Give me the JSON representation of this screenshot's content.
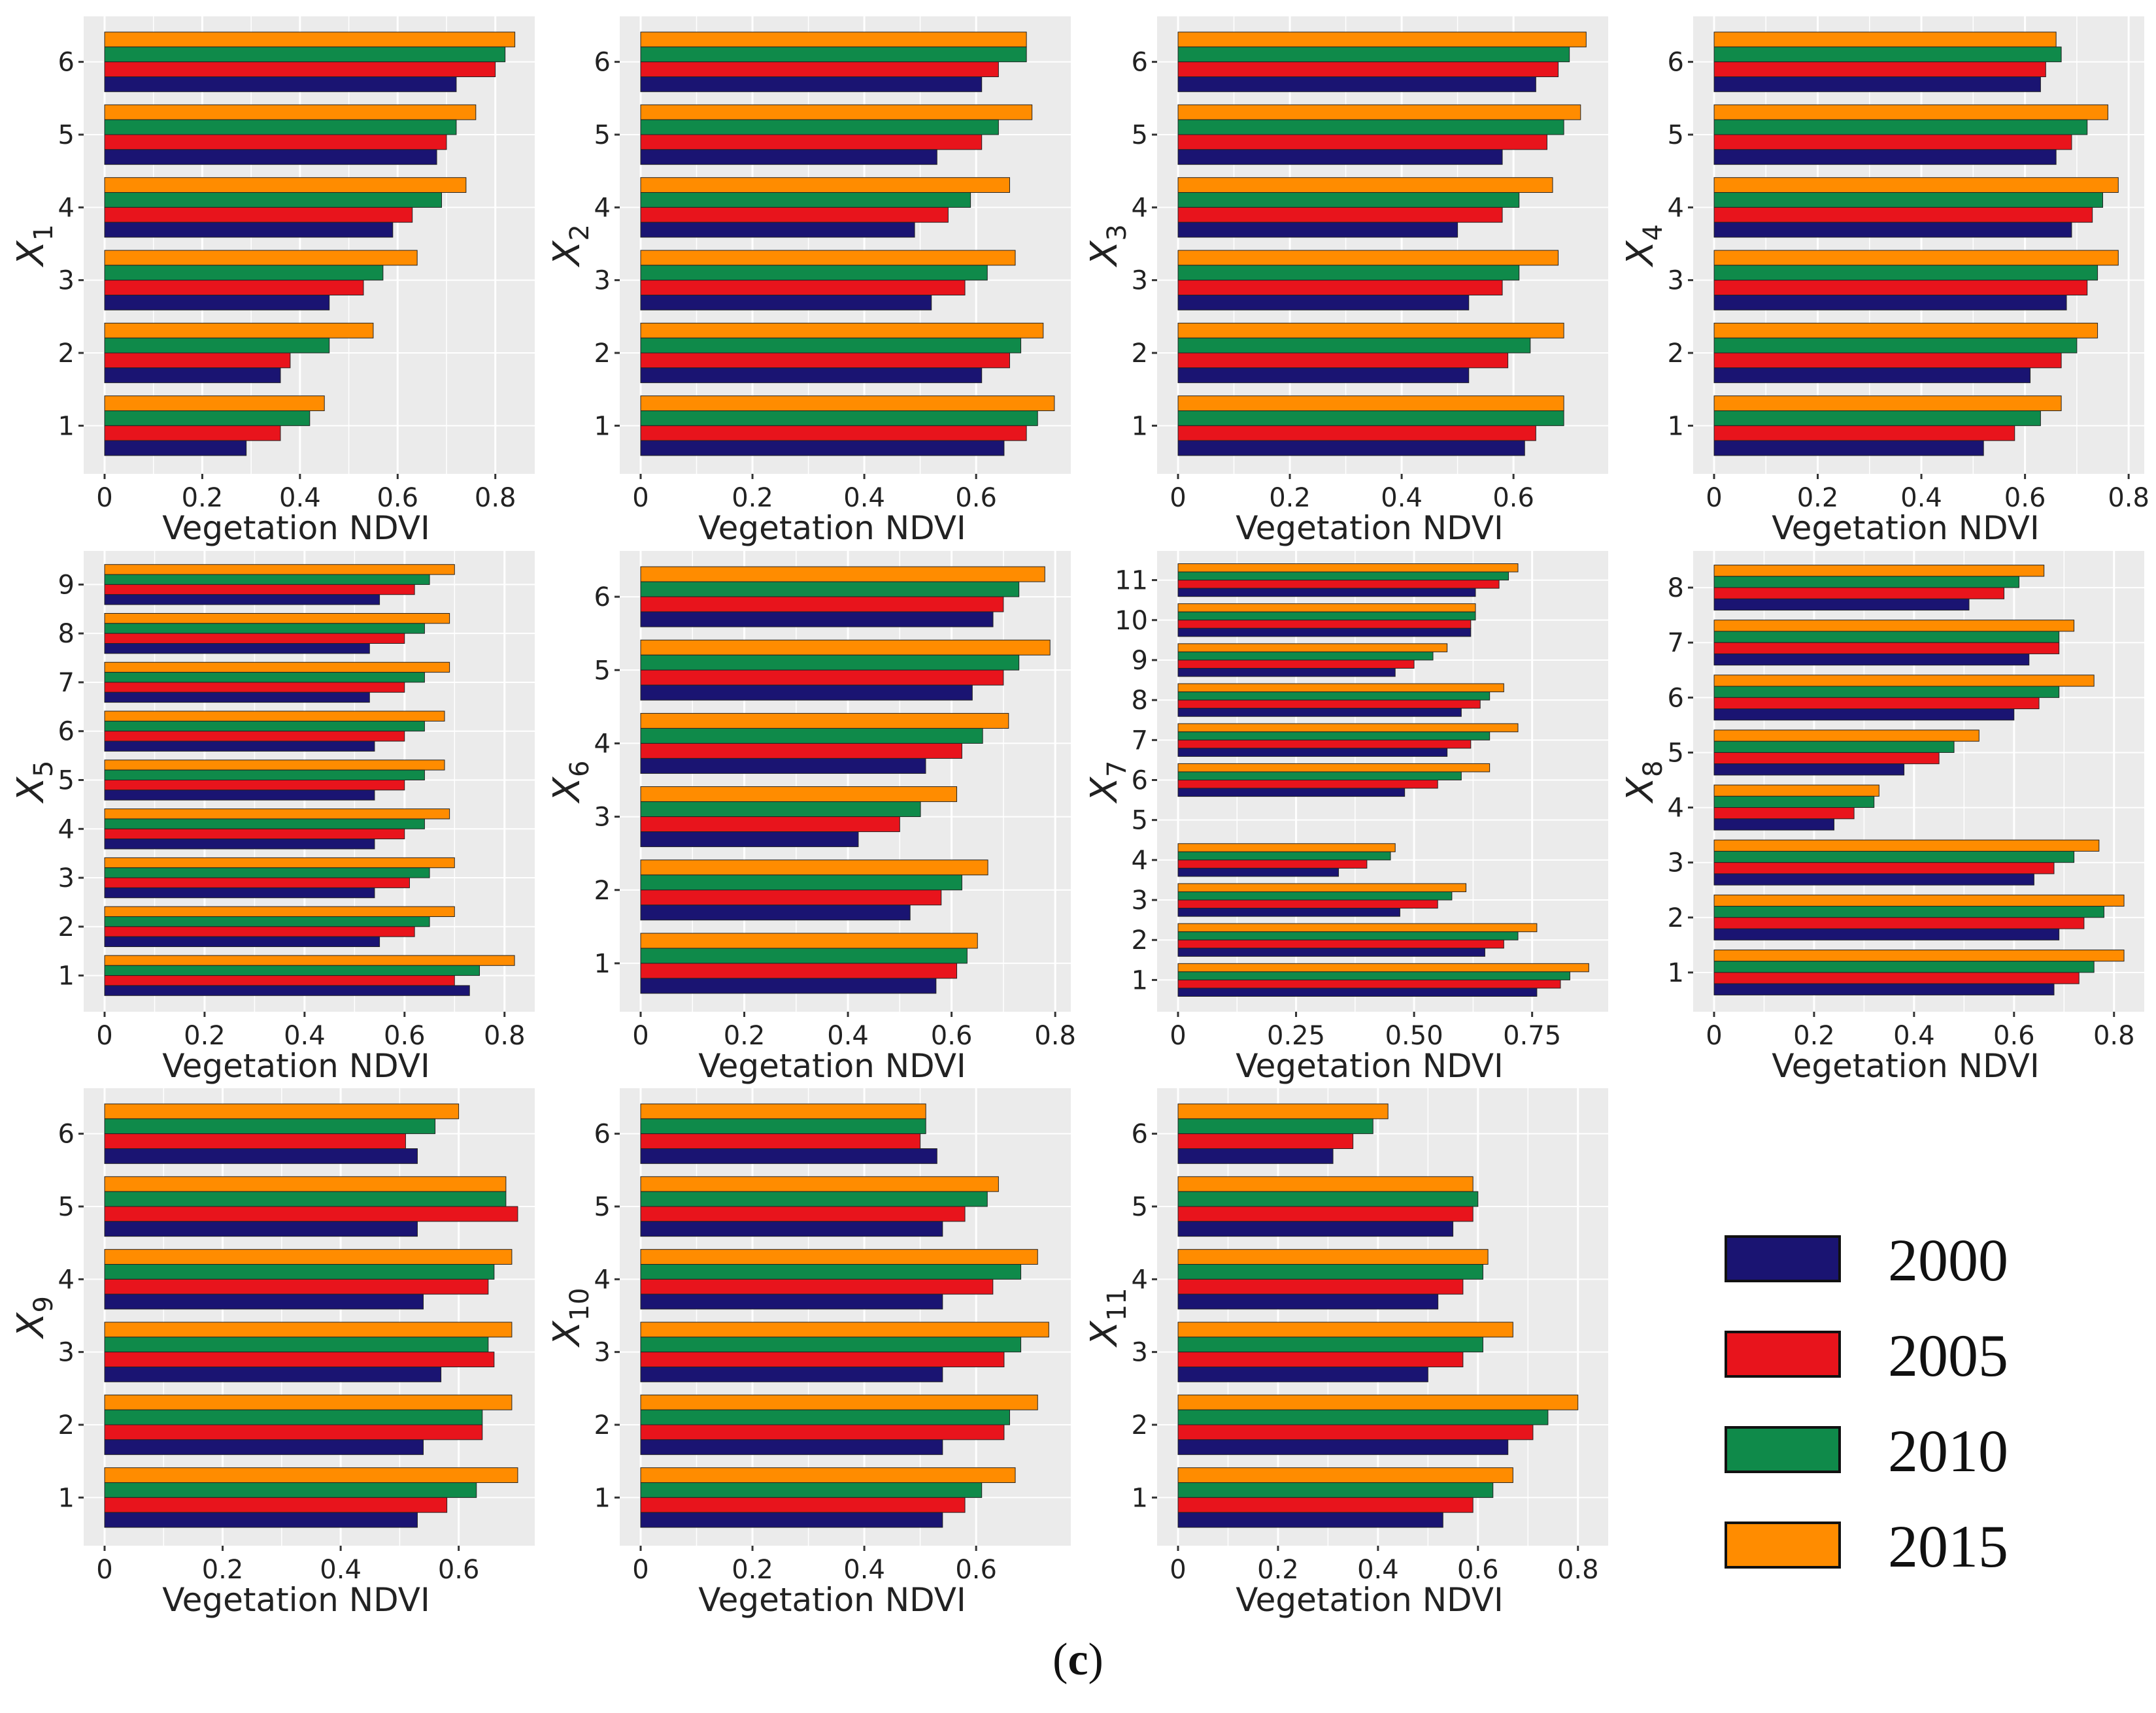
{
  "colors": {
    "2000": "#1a1472",
    "2005": "#e8141c",
    "2010": "#0f8a4a",
    "2015": "#ff8c00",
    "panel_bg": "#ebebeb",
    "grid": "#ffffff"
  },
  "legend": {
    "items": [
      {
        "label": "2000",
        "color": "#1a1472"
      },
      {
        "label": "2005",
        "color": "#e8141c"
      },
      {
        "label": "2010",
        "color": "#0f8a4a"
      },
      {
        "label": "2015",
        "color": "#ff8c00"
      }
    ]
  },
  "figure_label": {
    "open": "(",
    "letter": "c",
    "close": ")"
  },
  "chart_data": [
    {
      "type": "bar",
      "orientation": "horizontal",
      "ylabel_base": "X",
      "ylabel_sub": "1",
      "xlabel": "Vegetation NDVI",
      "xlim": [
        0,
        0.87
      ],
      "xticks": [
        0,
        0.2,
        0.4,
        0.6,
        0.8
      ],
      "xtick_labels": [
        "0",
        "0.2",
        "0.4",
        "0.6",
        "0.8"
      ],
      "categories": [
        "1",
        "2",
        "3",
        "4",
        "5",
        "6"
      ],
      "series": [
        {
          "name": "2000",
          "values": [
            0.29,
            0.36,
            0.46,
            0.59,
            0.68,
            0.72
          ]
        },
        {
          "name": "2005",
          "values": [
            0.36,
            0.38,
            0.53,
            0.63,
            0.7,
            0.8
          ]
        },
        {
          "name": "2010",
          "values": [
            0.42,
            0.46,
            0.57,
            0.69,
            0.72,
            0.82
          ]
        },
        {
          "name": "2015",
          "values": [
            0.45,
            0.55,
            0.64,
            0.74,
            0.76,
            0.84
          ]
        }
      ]
    },
    {
      "type": "bar",
      "orientation": "horizontal",
      "ylabel_base": "X",
      "ylabel_sub": "2",
      "xlabel": "Vegetation NDVI",
      "xlim": [
        0,
        0.76
      ],
      "xticks": [
        0,
        0.2,
        0.4,
        0.6
      ],
      "xtick_labels": [
        "0",
        "0.2",
        "0.4",
        "0.6"
      ],
      "categories": [
        "1",
        "2",
        "3",
        "4",
        "5",
        "6"
      ],
      "series": [
        {
          "name": "2000",
          "values": [
            0.65,
            0.61,
            0.52,
            0.49,
            0.53,
            0.61
          ]
        },
        {
          "name": "2005",
          "values": [
            0.69,
            0.66,
            0.58,
            0.55,
            0.61,
            0.64
          ]
        },
        {
          "name": "2010",
          "values": [
            0.71,
            0.68,
            0.62,
            0.59,
            0.64,
            0.69
          ]
        },
        {
          "name": "2015",
          "values": [
            0.74,
            0.72,
            0.67,
            0.66,
            0.7,
            0.69
          ]
        }
      ]
    },
    {
      "type": "bar",
      "orientation": "horizontal",
      "ylabel_base": "X",
      "ylabel_sub": "3",
      "xlabel": "Vegetation NDVI",
      "xlim": [
        0,
        0.76
      ],
      "xticks": [
        0,
        0.2,
        0.4,
        0.6
      ],
      "xtick_labels": [
        "0",
        "0.2",
        "0.4",
        "0.6"
      ],
      "categories": [
        "1",
        "2",
        "3",
        "4",
        "5",
        "6"
      ],
      "series": [
        {
          "name": "2000",
          "values": [
            0.62,
            0.52,
            0.52,
            0.5,
            0.58,
            0.64
          ]
        },
        {
          "name": "2005",
          "values": [
            0.64,
            0.59,
            0.58,
            0.58,
            0.66,
            0.68
          ]
        },
        {
          "name": "2010",
          "values": [
            0.69,
            0.63,
            0.61,
            0.61,
            0.69,
            0.7
          ]
        },
        {
          "name": "2015",
          "values": [
            0.69,
            0.69,
            0.68,
            0.67,
            0.72,
            0.73
          ]
        }
      ]
    },
    {
      "type": "bar",
      "orientation": "horizontal",
      "ylabel_base": "X",
      "ylabel_sub": "4",
      "xlabel": "Vegetation NDVI",
      "xlim": [
        0,
        0.82
      ],
      "xticks": [
        0,
        0.2,
        0.4,
        0.6,
        0.8
      ],
      "xtick_labels": [
        "0",
        "0.2",
        "0.4",
        "0.6",
        "0.8"
      ],
      "categories": [
        "1",
        "2",
        "3",
        "4",
        "5",
        "6"
      ],
      "series": [
        {
          "name": "2000",
          "values": [
            0.52,
            0.61,
            0.68,
            0.69,
            0.66,
            0.63
          ]
        },
        {
          "name": "2005",
          "values": [
            0.58,
            0.67,
            0.72,
            0.73,
            0.69,
            0.64
          ]
        },
        {
          "name": "2010",
          "values": [
            0.63,
            0.7,
            0.74,
            0.75,
            0.72,
            0.67
          ]
        },
        {
          "name": "2015",
          "values": [
            0.67,
            0.74,
            0.78,
            0.78,
            0.76,
            0.66
          ]
        }
      ]
    },
    {
      "type": "bar",
      "orientation": "horizontal",
      "ylabel_base": "X",
      "ylabel_sub": "5",
      "xlabel": "Vegetation NDVI",
      "xlim": [
        0,
        0.85
      ],
      "xticks": [
        0,
        0.2,
        0.4,
        0.6,
        0.8
      ],
      "xtick_labels": [
        "0",
        "0.2",
        "0.4",
        "0.6",
        "0.8"
      ],
      "categories": [
        "1",
        "2",
        "3",
        "4",
        "5",
        "6",
        "7",
        "8",
        "9"
      ],
      "series": [
        {
          "name": "2000",
          "values": [
            0.73,
            0.55,
            0.54,
            0.54,
            0.54,
            0.54,
            0.53,
            0.53,
            0.55
          ]
        },
        {
          "name": "2005",
          "values": [
            0.7,
            0.62,
            0.61,
            0.6,
            0.6,
            0.6,
            0.6,
            0.6,
            0.62
          ]
        },
        {
          "name": "2010",
          "values": [
            0.75,
            0.65,
            0.65,
            0.64,
            0.64,
            0.64,
            0.64,
            0.64,
            0.65
          ]
        },
        {
          "name": "2015",
          "values": [
            0.82,
            0.7,
            0.7,
            0.69,
            0.68,
            0.68,
            0.69,
            0.69,
            0.7
          ]
        }
      ]
    },
    {
      "type": "bar",
      "orientation": "horizontal",
      "ylabel_base": "X",
      "ylabel_sub": "6",
      "xlabel": "Vegetation NDVI",
      "xlim": [
        0,
        0.82
      ],
      "xticks": [
        0,
        0.2,
        0.4,
        0.6,
        0.8
      ],
      "xtick_labels": [
        "0",
        "0.2",
        "0.4",
        "0.6",
        "0.8"
      ],
      "categories": [
        "1",
        "2",
        "3",
        "4",
        "5",
        "6"
      ],
      "series": [
        {
          "name": "2000",
          "values": [
            0.57,
            0.52,
            0.42,
            0.55,
            0.64,
            0.68
          ]
        },
        {
          "name": "2005",
          "values": [
            0.61,
            0.58,
            0.5,
            0.62,
            0.7,
            0.7
          ]
        },
        {
          "name": "2010",
          "values": [
            0.63,
            0.62,
            0.54,
            0.66,
            0.73,
            0.73
          ]
        },
        {
          "name": "2015",
          "values": [
            0.65,
            0.67,
            0.61,
            0.71,
            0.79,
            0.78
          ]
        }
      ]
    },
    {
      "type": "bar",
      "orientation": "horizontal",
      "ylabel_base": "X",
      "ylabel_sub": "7",
      "xlabel": "Vegetation NDVI",
      "xlim": [
        0,
        0.9
      ],
      "xticks": [
        0,
        0.25,
        0.5,
        0.75
      ],
      "xtick_labels": [
        "0",
        "0.25",
        "0.50",
        "0.75"
      ],
      "categories": [
        "1",
        "2",
        "3",
        "4",
        "5",
        "6",
        "7",
        "8",
        "9",
        "10",
        "11"
      ],
      "series": [
        {
          "name": "2000",
          "values": [
            0.76,
            0.65,
            0.47,
            0.34,
            null,
            0.48,
            0.57,
            0.6,
            0.46,
            0.62,
            0.63
          ]
        },
        {
          "name": "2005",
          "values": [
            0.81,
            0.69,
            0.55,
            0.4,
            null,
            0.55,
            0.62,
            0.64,
            0.5,
            0.62,
            0.68
          ]
        },
        {
          "name": "2010",
          "values": [
            0.83,
            0.72,
            0.58,
            0.45,
            null,
            0.6,
            0.66,
            0.66,
            0.54,
            0.63,
            0.7
          ]
        },
        {
          "name": "2015",
          "values": [
            0.87,
            0.76,
            0.61,
            0.46,
            null,
            0.66,
            0.72,
            0.69,
            0.57,
            0.63,
            0.72
          ]
        }
      ]
    },
    {
      "type": "bar",
      "orientation": "horizontal",
      "ylabel_base": "X",
      "ylabel_sub": "8",
      "xlabel": "Vegetation NDVI",
      "xlim": [
        0,
        0.85
      ],
      "xticks": [
        0,
        0.2,
        0.4,
        0.6,
        0.8
      ],
      "xtick_labels": [
        "0",
        "0.2",
        "0.4",
        "0.6",
        "0.8"
      ],
      "categories": [
        "1",
        "2",
        "3",
        "4",
        "5",
        "6",
        "7",
        "8"
      ],
      "series": [
        {
          "name": "2000",
          "values": [
            0.68,
            0.69,
            0.64,
            0.24,
            0.38,
            0.6,
            0.63,
            0.51
          ]
        },
        {
          "name": "2005",
          "values": [
            0.73,
            0.74,
            0.68,
            0.28,
            0.45,
            0.65,
            0.69,
            0.58
          ]
        },
        {
          "name": "2010",
          "values": [
            0.76,
            0.78,
            0.72,
            0.32,
            0.48,
            0.69,
            0.69,
            0.61
          ]
        },
        {
          "name": "2015",
          "values": [
            0.82,
            0.82,
            0.77,
            0.33,
            0.53,
            0.76,
            0.72,
            0.66
          ]
        }
      ]
    },
    {
      "type": "bar",
      "orientation": "horizontal",
      "ylabel_base": "X",
      "ylabel_sub": "9",
      "xlabel": "Vegetation NDVI",
      "xlim": [
        0,
        0.72
      ],
      "xticks": [
        0,
        0.2,
        0.4,
        0.6
      ],
      "xtick_labels": [
        "0",
        "0.2",
        "0.4",
        "0.6"
      ],
      "categories": [
        "1",
        "2",
        "3",
        "4",
        "5",
        "6"
      ],
      "series": [
        {
          "name": "2000",
          "values": [
            0.53,
            0.54,
            0.57,
            0.54,
            0.53,
            0.53
          ]
        },
        {
          "name": "2005",
          "values": [
            0.58,
            0.64,
            0.66,
            0.65,
            0.7,
            0.51
          ]
        },
        {
          "name": "2010",
          "values": [
            0.63,
            0.64,
            0.65,
            0.66,
            0.68,
            0.56
          ]
        },
        {
          "name": "2015",
          "values": [
            0.7,
            0.69,
            0.69,
            0.69,
            0.68,
            0.6
          ]
        }
      ]
    },
    {
      "type": "bar",
      "orientation": "horizontal",
      "ylabel_base": "X",
      "ylabel_sub": "10",
      "xlabel": "Vegetation NDVI",
      "xlim": [
        0,
        0.76
      ],
      "xticks": [
        0,
        0.2,
        0.4,
        0.6
      ],
      "xtick_labels": [
        "0",
        "0.2",
        "0.4",
        "0.6"
      ],
      "categories": [
        "1",
        "2",
        "3",
        "4",
        "5",
        "6"
      ],
      "series": [
        {
          "name": "2000",
          "values": [
            0.54,
            0.54,
            0.54,
            0.54,
            0.54,
            0.53
          ]
        },
        {
          "name": "2005",
          "values": [
            0.58,
            0.65,
            0.65,
            0.63,
            0.58,
            0.5
          ]
        },
        {
          "name": "2010",
          "values": [
            0.61,
            0.66,
            0.68,
            0.68,
            0.62,
            0.51
          ]
        },
        {
          "name": "2015",
          "values": [
            0.67,
            0.71,
            0.73,
            0.71,
            0.64,
            0.51
          ]
        }
      ]
    },
    {
      "type": "bar",
      "orientation": "horizontal",
      "ylabel_base": "X",
      "ylabel_sub": "11",
      "xlabel": "Vegetation NDVI",
      "xlim": [
        0,
        0.85
      ],
      "xticks": [
        0,
        0.2,
        0.4,
        0.6,
        0.8
      ],
      "xtick_labels": [
        "0",
        "0.2",
        "0.4",
        "0.6",
        "0.8"
      ],
      "categories": [
        "1",
        "2",
        "3",
        "4",
        "5",
        "6"
      ],
      "series": [
        {
          "name": "2000",
          "values": [
            0.53,
            0.66,
            0.5,
            0.52,
            0.55,
            0.31
          ]
        },
        {
          "name": "2005",
          "values": [
            0.59,
            0.71,
            0.57,
            0.57,
            0.59,
            0.35
          ]
        },
        {
          "name": "2010",
          "values": [
            0.63,
            0.74,
            0.61,
            0.61,
            0.6,
            0.39
          ]
        },
        {
          "name": "2015",
          "values": [
            0.67,
            0.8,
            0.67,
            0.62,
            0.59,
            0.42
          ]
        }
      ]
    }
  ]
}
